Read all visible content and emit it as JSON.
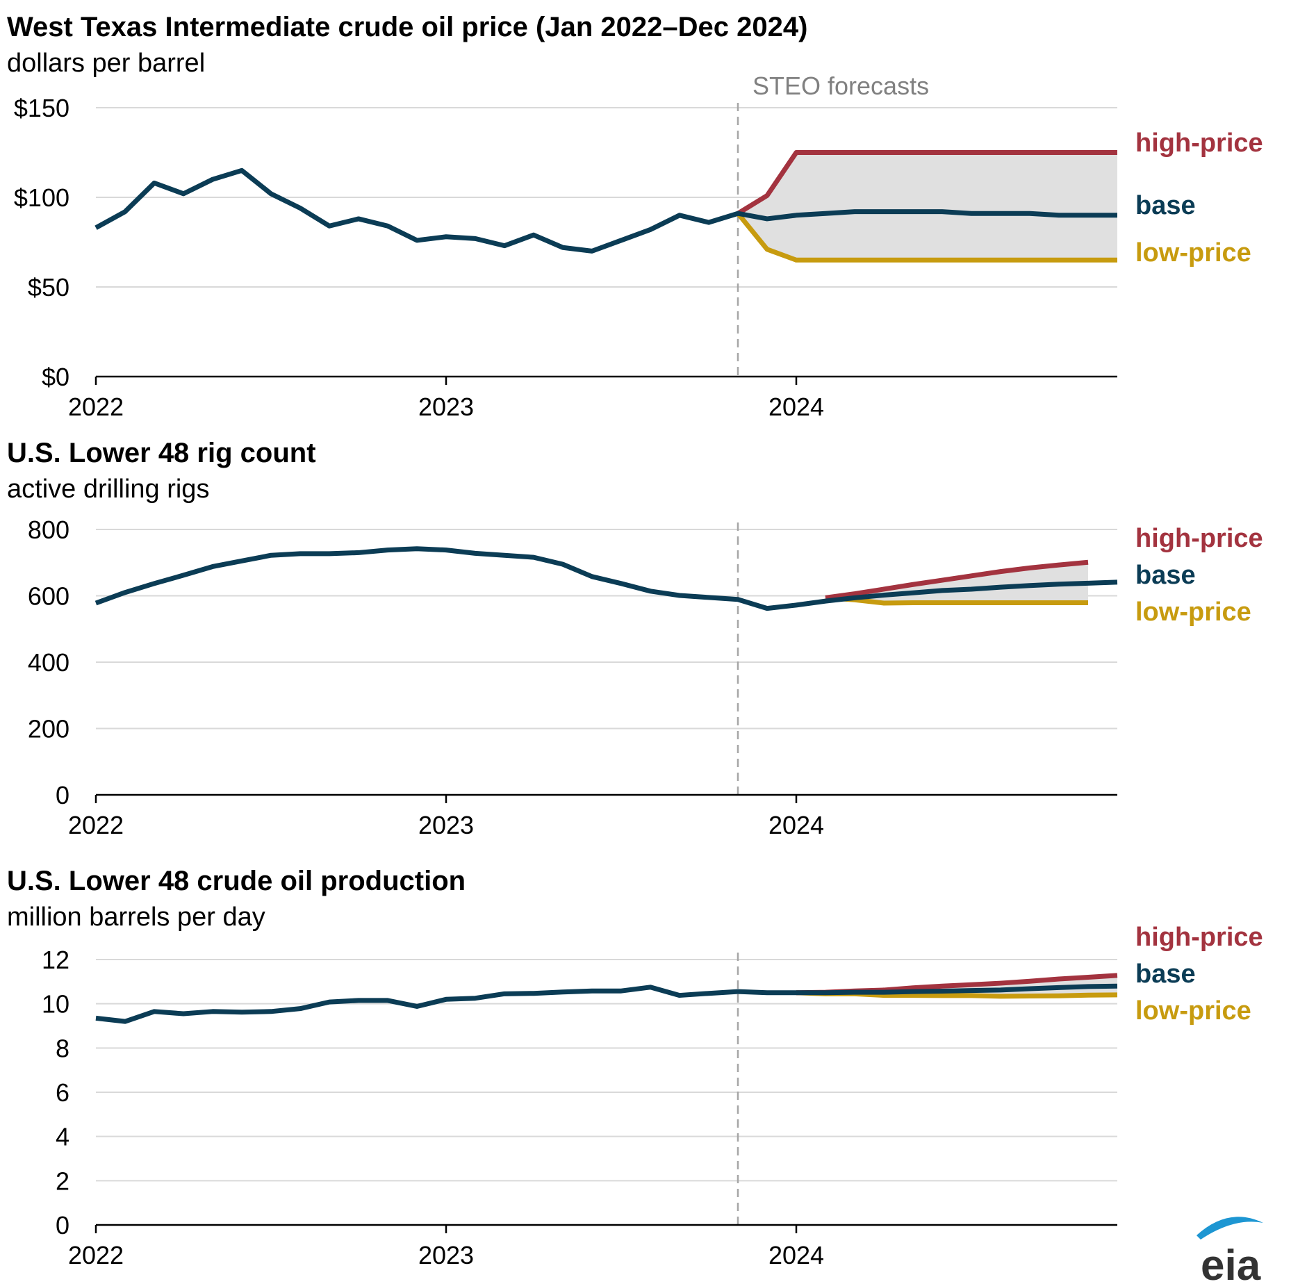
{
  "colors": {
    "base": "#0b3c55",
    "high": "#a3333f",
    "low": "#c79b0f",
    "band": "#e0e0e0",
    "grid": "#d9d9d9",
    "forecast_line": "#a6a6a6"
  },
  "forecast_label": "STEO forecasts",
  "logo": {
    "text": "eia",
    "icon": "eia-swoosh-logo"
  },
  "chart_data": [
    {
      "type": "line",
      "title": "West Texas Intermediate crude oil price (Jan 2022–Dec 2024)",
      "subtitle": "dollars per barrel",
      "ylim": [
        0,
        150
      ],
      "yticks": [
        0,
        50,
        100,
        150
      ],
      "ytick_labels": [
        "$0",
        "$50",
        "$100",
        "$150"
      ],
      "x_start": "2022-01",
      "x_ticks": [
        "2022",
        "2023",
        "2024"
      ],
      "forecast_start": "2023-11",
      "grid": true,
      "legend": "right",
      "series": [
        {
          "name": "base",
          "color_key": "base",
          "start": "2022-01",
          "values": [
            83,
            92,
            108,
            102,
            110,
            115,
            102,
            94,
            84,
            88,
            84,
            76,
            78,
            77,
            73,
            79,
            72,
            70,
            76,
            82,
            90,
            86,
            91,
            88,
            90,
            91,
            92,
            92,
            92,
            92,
            91,
            91,
            91,
            90,
            90,
            90
          ]
        },
        {
          "name": "high-price",
          "color_key": "high",
          "start": "2023-11",
          "values": [
            91,
            101,
            125,
            125,
            125,
            125,
            125,
            125,
            125,
            125,
            125,
            125,
            125,
            125
          ]
        },
        {
          "name": "low-price",
          "color_key": "low",
          "start": "2023-11",
          "values": [
            91,
            71,
            65,
            65,
            65,
            65,
            65,
            65,
            65,
            65,
            65,
            65,
            65,
            65
          ]
        }
      ]
    },
    {
      "type": "line",
      "title": "U.S. Lower 48 rig count",
      "subtitle": "active drilling rigs",
      "ylim": [
        0,
        800
      ],
      "yticks": [
        0,
        200,
        400,
        600,
        800
      ],
      "ytick_labels": [
        "0",
        "200",
        "400",
        "600",
        "800"
      ],
      "x_start": "2022-01",
      "x_ticks": [
        "2022",
        "2023",
        "2024"
      ],
      "forecast_start": "2023-11",
      "grid": true,
      "legend": "right",
      "series": [
        {
          "name": "base",
          "color_key": "base",
          "start": "2022-01",
          "values": [
            578,
            610,
            637,
            662,
            688,
            705,
            722,
            727,
            727,
            730,
            738,
            742,
            738,
            728,
            722,
            716,
            695,
            658,
            637,
            614,
            601,
            595,
            589,
            562,
            572,
            584,
            594,
            602,
            609,
            616,
            620,
            626,
            631,
            635,
            638,
            641
          ]
        },
        {
          "name": "high-price",
          "color_key": "high",
          "start": "2024-02",
          "values": [
            594,
            606,
            620,
            634,
            647,
            660,
            673,
            684,
            693,
            701
          ]
        },
        {
          "name": "low-price",
          "color_key": "low",
          "start": "2024-02",
          "values": [
            594,
            588,
            578,
            579,
            579,
            579,
            579,
            579,
            579,
            579
          ]
        }
      ]
    },
    {
      "type": "line",
      "title": "U.S. Lower 48 crude oil production",
      "subtitle": "million barrels per day",
      "ylim": [
        0,
        12
      ],
      "yticks": [
        0,
        2,
        4,
        6,
        8,
        10,
        12
      ],
      "ytick_labels": [
        "0",
        "2",
        "4",
        "6",
        "8",
        "10",
        "12"
      ],
      "x_start": "2022-01",
      "x_ticks": [
        "2022",
        "2023",
        "2024"
      ],
      "forecast_start": "2023-11",
      "grid": true,
      "legend": "right",
      "series": [
        {
          "name": "base",
          "color_key": "base",
          "start": "2022-01",
          "values": [
            9.35,
            9.2,
            9.65,
            9.55,
            9.65,
            9.62,
            9.65,
            9.78,
            10.08,
            10.15,
            10.15,
            9.88,
            10.2,
            10.25,
            10.45,
            10.47,
            10.53,
            10.58,
            10.58,
            10.75,
            10.38,
            10.47,
            10.55,
            10.5,
            10.5,
            10.5,
            10.52,
            10.52,
            10.55,
            10.57,
            10.6,
            10.62,
            10.68,
            10.73,
            10.78,
            10.8
          ]
        },
        {
          "name": "high-price",
          "color_key": "high",
          "start": "2024-01",
          "values": [
            10.5,
            10.52,
            10.58,
            10.62,
            10.72,
            10.8,
            10.86,
            10.93,
            11.02,
            11.12,
            11.2,
            11.28
          ]
        },
        {
          "name": "low-price",
          "color_key": "low",
          "start": "2024-01",
          "values": [
            10.5,
            10.45,
            10.45,
            10.38,
            10.38,
            10.37,
            10.37,
            10.34,
            10.35,
            10.36,
            10.39,
            10.4
          ]
        }
      ]
    }
  ]
}
